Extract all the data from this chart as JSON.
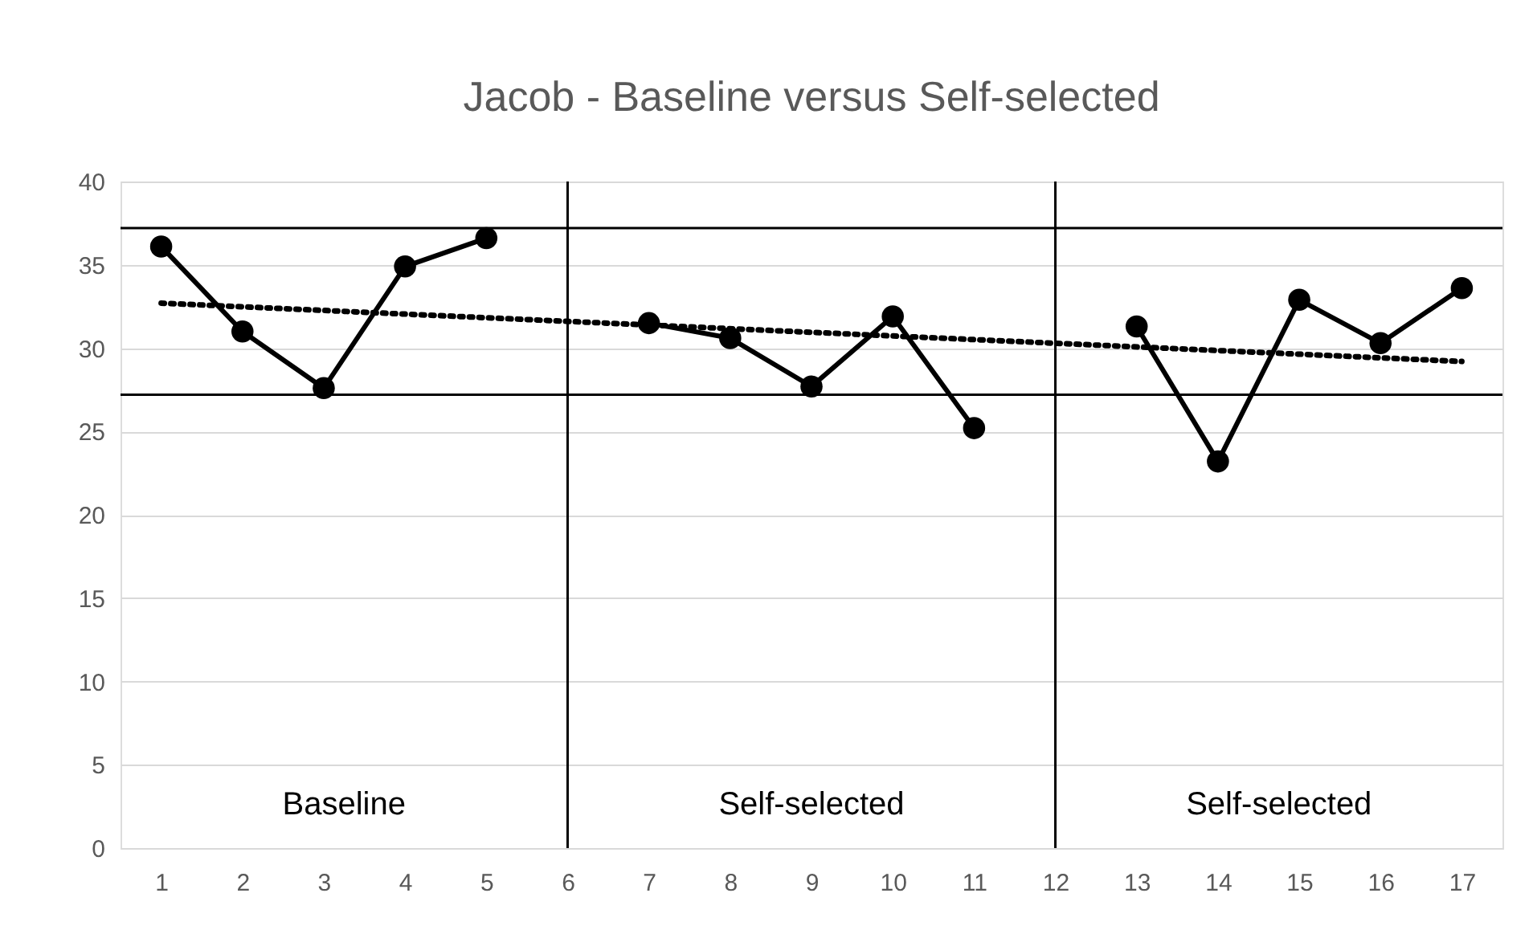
{
  "chart_data": {
    "type": "line",
    "title": "Jacob - Baseline versus Self-selected",
    "x": [
      1,
      2,
      3,
      4,
      5,
      6,
      7,
      8,
      9,
      10,
      11,
      12,
      13,
      14,
      15,
      16,
      17
    ],
    "series": [
      {
        "color": "#000000",
        "marker": "circle",
        "line_style": "solid",
        "values": [
          36.1,
          31.0,
          27.6,
          34.9,
          36.6,
          null,
          31.5,
          30.6,
          27.7,
          31.9,
          25.2,
          null,
          31.3,
          23.2,
          32.9,
          30.3,
          33.6
        ]
      },
      {
        "type": "line",
        "color": "#000000",
        "marker": "none",
        "line_style": "dotted",
        "x": [
          1,
          17
        ],
        "values": [
          32.7,
          29.2
        ]
      }
    ],
    "xlim": [
      0.5,
      17.5
    ],
    "xticks": [
      1,
      2,
      3,
      4,
      5,
      6,
      7,
      8,
      9,
      10,
      11,
      12,
      13,
      14,
      15,
      16,
      17
    ],
    "ylim": [
      0,
      40
    ],
    "yticks": [
      0,
      5,
      10,
      15,
      20,
      25,
      30,
      35,
      40
    ],
    "ref_lines": [
      {
        "axis": "y",
        "value": 37.2,
        "color": "#000000",
        "line_style": "solid"
      },
      {
        "axis": "y",
        "value": 27.2,
        "color": "#000000",
        "line_style": "solid"
      },
      {
        "axis": "x",
        "value": 6,
        "color": "#000000",
        "line_style": "solid"
      },
      {
        "axis": "x",
        "value": 12,
        "color": "#000000",
        "line_style": "solid"
      }
    ],
    "annotations": [
      "Baseline",
      "Self-selected",
      "Self-selected"
    ],
    "grid": "y"
  }
}
